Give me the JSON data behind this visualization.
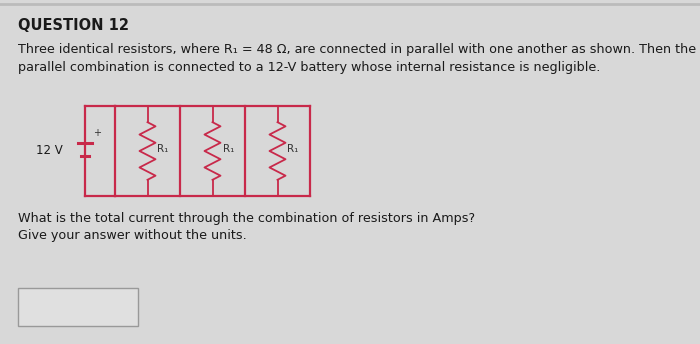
{
  "title": "QUESTION 12",
  "line1": "Three identical resistors, where R",
  "line1_sub": "1",
  "line1_rest": " = 48 Ω, are connected in parallel with one another as shown. Then the",
  "line2": "parallel combination is connected to a 12-V battery whose internal resistance is negligible.",
  "question_text_1": "What is the total current through the combination of resistors in Amps?",
  "question_text_2": "Give your answer without the units.",
  "battery_label": "12 V",
  "resistor_labels": [
    "R₁",
    "R₁",
    "R₁"
  ],
  "circuit_color": "#c8294a",
  "bg_color": "#d8d8d8",
  "card_bg": "#e8e8e8",
  "title_fontsize": 10.5,
  "body_fontsize": 9.2,
  "question_fontsize": 9.2
}
